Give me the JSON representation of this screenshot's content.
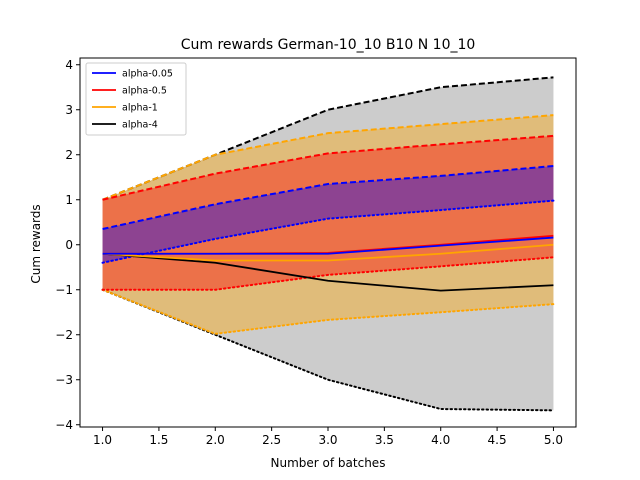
{
  "chart_data": {
    "type": "line",
    "title": "Cum rewards German-10_10 B10 N 10_10",
    "xlabel": "Number of batches",
    "ylabel": "Cum rewards",
    "x": [
      1.0,
      2.0,
      3.0,
      4.0,
      5.0
    ],
    "xlim": [
      0.8,
      5.2
    ],
    "ylim": [
      -4.05,
      4.15
    ],
    "xticks": [
      1.0,
      1.5,
      2.0,
      2.5,
      3.0,
      3.5,
      4.0,
      4.5,
      5.0
    ],
    "xtick_labels": [
      "1.0",
      "1.5",
      "2.0",
      "2.5",
      "3.0",
      "3.5",
      "4.0",
      "4.5",
      "5.0"
    ],
    "yticks": [
      -4,
      -3,
      -2,
      -1,
      0,
      1,
      2,
      3,
      4
    ],
    "ytick_labels": [
      "−4",
      "−3",
      "−2",
      "−1",
      "0",
      "1",
      "2",
      "3",
      "4"
    ],
    "legend_position": "top-left",
    "series": [
      {
        "name": "alpha-4",
        "color": "#000000",
        "fill_color": "#808080",
        "mean": [
          -0.2,
          -0.4,
          -0.8,
          -1.02,
          -0.9
        ],
        "upper": [
          1.0,
          2.0,
          3.0,
          3.5,
          3.72
        ],
        "lower": [
          -1.0,
          -2.0,
          -3.0,
          -3.65,
          -3.68
        ]
      },
      {
        "name": "alpha-1",
        "color": "#ffa500",
        "fill_color": "#ffa500",
        "mean": [
          -0.2,
          -0.35,
          -0.35,
          -0.2,
          0.0
        ],
        "upper": [
          1.0,
          2.0,
          2.48,
          2.68,
          2.88
        ],
        "lower": [
          -1.0,
          -1.98,
          -1.67,
          -1.5,
          -1.32
        ]
      },
      {
        "name": "alpha-0.5",
        "color": "#ff0000",
        "fill_color": "#ff0000",
        "mean": [
          -0.2,
          -0.2,
          -0.18,
          0.0,
          0.2
        ],
        "upper": [
          1.0,
          1.58,
          2.03,
          2.23,
          2.42
        ],
        "lower": [
          -1.0,
          -1.0,
          -0.67,
          -0.48,
          -0.28
        ]
      },
      {
        "name": "alpha-0.05",
        "color": "#0000ff",
        "fill_color": "#0000ff",
        "mean": [
          -0.2,
          -0.2,
          -0.2,
          -0.02,
          0.16
        ],
        "upper": [
          0.35,
          0.9,
          1.35,
          1.53,
          1.75
        ],
        "lower": [
          -0.4,
          0.13,
          0.58,
          0.77,
          0.98
        ]
      }
    ],
    "legend_order": [
      "alpha-0.05",
      "alpha-0.5",
      "alpha-1",
      "alpha-4"
    ]
  }
}
